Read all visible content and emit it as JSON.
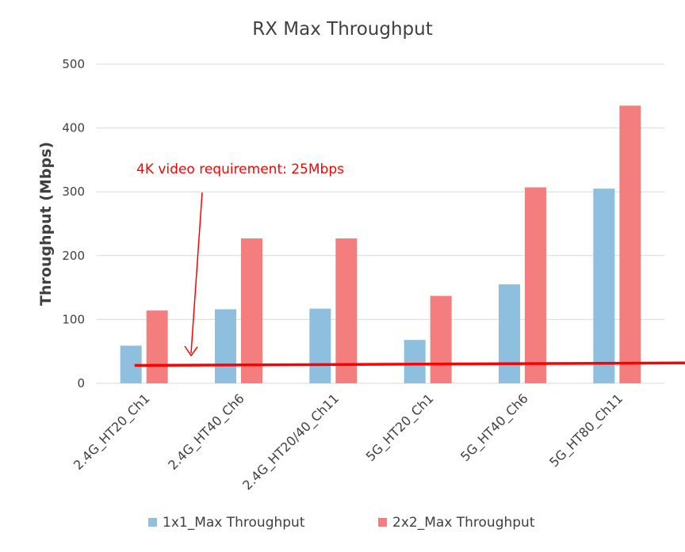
{
  "chart_data": {
    "type": "bar",
    "title": "RX Max Throughput",
    "ylabel": "Throughput (Mbps)",
    "xlabel": "",
    "ylim": [
      0,
      500
    ],
    "yticks": [
      0,
      100,
      200,
      300,
      400,
      500
    ],
    "grid": true,
    "legend_position": "bottom",
    "categories": [
      "2.4G_HT20_Ch1",
      "2.4G_HT40_Ch6",
      "2.4G_HT20/40_Ch11",
      "5G_HT20_Ch1",
      "5G_HT40_Ch6",
      "5G_HT80_Ch11"
    ],
    "series": [
      {
        "name": "1x1_Max Throughput",
        "color": "#8ebfdf",
        "values": [
          59,
          116,
          117,
          68,
          155,
          305
        ]
      },
      {
        "name": "2x2_Max Throughput",
        "color": "#f47e7e",
        "values": [
          114,
          227,
          227,
          137,
          307,
          435
        ]
      }
    ],
    "annotation": {
      "text": "4K video requirement: 25Mbps",
      "color": "#ff0000",
      "reference_line": {
        "x_start": -0.1,
        "y_start": 28,
        "x_end": 5.8,
        "y_end": 32
      }
    }
  }
}
